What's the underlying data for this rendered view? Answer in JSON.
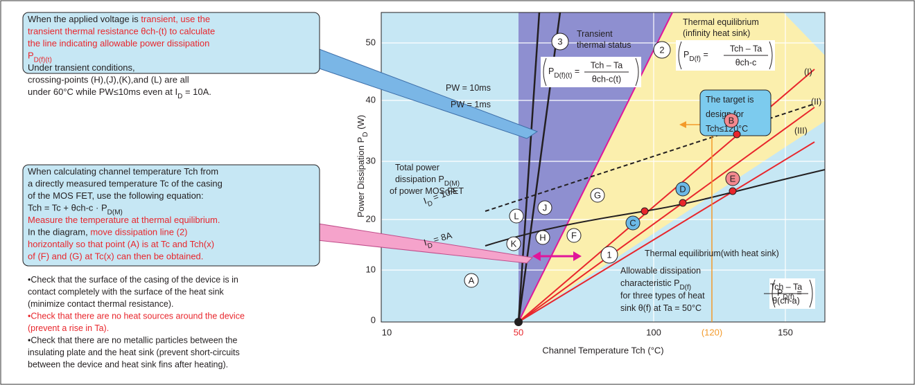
{
  "note_boxes": [
    {
      "lines": [
        [
          {
            "text": "When the applied voltage is "
          },
          {
            "text": "transient, use the",
            "color": "#e8262c"
          }
        ],
        [
          {
            "text": "transient thermal resistance θch-(t) to calculate",
            "color": "#e8262c"
          }
        ],
        [
          {
            "text": "the line indicating allowable power dissipation",
            "color": "#e8262c"
          }
        ],
        [
          {
            "text": "P",
            "color": "#e8262c"
          },
          {
            "text": "D(f)(t)",
            "color": "#e8262c",
            "sub": true
          }
        ],
        [
          {
            "text": "Under transient conditions,"
          }
        ],
        [
          {
            "text": "crossing-points (H),(J),(K),and (L) are all"
          }
        ],
        [
          {
            "text": "under 60°C while PW≤10ms even at I"
          },
          {
            "text": "D",
            "sub": true
          },
          {
            "text": " = 10A."
          }
        ]
      ]
    },
    {
      "lines": [
        [
          {
            "text": "When calculating channel temperature Tch from"
          }
        ],
        [
          {
            "text": "a directly measured temperature Tc of the casing"
          }
        ],
        [
          {
            "text": "of the MOS FET, use the following equation:"
          }
        ],
        [
          {
            "text": "  Tch = Tc + θch-c · P"
          },
          {
            "text": "D(M)",
            "sub": true
          }
        ],
        [
          {
            "text": "Measure the temperature at thermal equilibrium.",
            "color": "#e8262c"
          }
        ],
        [
          {
            "text": "In the diagram, "
          },
          {
            "text": "move dissipation line (2)",
            "color": "#e8262c"
          }
        ],
        [
          {
            "text": "horizontally so that point (A) is at Tc and Tch(x)",
            "color": "#e8262c"
          }
        ],
        [
          {
            "text": "of (F) and (G) at Tc(x) can then be obtained.",
            "color": "#e8262c"
          }
        ]
      ]
    }
  ],
  "checklist": [
    [
      {
        "text": "•Check that the surface of the casing of the device is in"
      }
    ],
    [
      {
        "text": "contact completely with the surface of the heat sink"
      }
    ],
    [
      {
        "text": "(minimize contact thermal resistance)."
      }
    ],
    [
      {
        "text": "•Check that there are no heat sources around the device",
        "color": "#e8262c"
      }
    ],
    [
      {
        "text": "(prevent a rise in Ta).",
        "color": "#e8262c"
      }
    ],
    [
      {
        "text": "•Check that there are no metallic particles between the"
      }
    ],
    [
      {
        "text": "insulating plate and the heat sink (prevent short-circuits"
      }
    ],
    [
      {
        "text": "between the device and heat sink fins after heating)."
      }
    ]
  ],
  "axes": {
    "x_title": "Channel Temperature   Tch   (°C)",
    "y_title": [
      {
        "text": "Power Dissipation   P"
      },
      {
        "text": "D",
        "sub": true
      },
      {
        "text": "   (W)"
      }
    ],
    "x_ticks": [
      "10",
      "50",
      "100",
      "(120)",
      "150"
    ],
    "y_ticks": [
      "0",
      "10",
      "20",
      "30",
      "40",
      "50"
    ]
  },
  "labels": [
    [
      {
        "text": "Transient"
      }
    ],
    [
      {
        "text": "thermal status"
      }
    ],
    [
      {
        "text": "Thermal equilibrium"
      }
    ],
    [
      {
        "text": "(infinity heat sink)"
      }
    ],
    [
      {
        "text": "PW = 10ms"
      }
    ],
    [
      {
        "text": "PW = 1ms"
      }
    ],
    [
      {
        "text": "The target is"
      }
    ],
    [
      {
        "text": "design for"
      }
    ],
    [
      {
        "text": "Tch≤120°C"
      }
    ],
    [
      {
        "text": "(I)"
      }
    ],
    [
      {
        "text": "(II)"
      }
    ],
    [
      {
        "text": "(III)"
      }
    ],
    [
      {
        "text": "Total power"
      }
    ],
    [
      {
        "text": "dissipation P"
      },
      {
        "text": "D(M)",
        "sub": true
      }
    ],
    [
      {
        "text": " of power MOS FET"
      }
    ],
    [
      {
        "text": "Thermal equilibrium(with heat sink)"
      }
    ],
    [
      {
        "text": "Allowable dissipation"
      }
    ],
    [
      {
        "text": "characteristic P"
      },
      {
        "text": "D(f)",
        "sub": true
      }
    ],
    [
      {
        "text": "for three types of heat"
      }
    ],
    [
      {
        "text": "sink θ(f) at Ta = 50°C"
      }
    ],
    [
      {
        "text": "I"
      },
      {
        "text": "D",
        "sub": true
      },
      {
        "text": " = 10A"
      }
    ],
    [
      {
        "text": "I"
      },
      {
        "text": "D",
        "sub": true
      },
      {
        "text": " = 8A"
      }
    ]
  ],
  "circled": [
    "1",
    "2",
    "3",
    "A",
    "B",
    "C",
    "D",
    "E",
    "F",
    "G",
    "H",
    "J",
    "K",
    "L"
  ],
  "formulas": [
    {
      "lhs": "P",
      "sub": "D(f)(t)",
      "eq": " =",
      "num": "Tch – Ta",
      "den": "θch-c(t)"
    },
    {
      "lhs": "P",
      "sub": "D(f)",
      "eq": " =",
      "num": "Tch – Ta",
      "den": "θch-c"
    },
    {
      "lhs": "P",
      "sub": "D(f)",
      "eq": " =",
      "num": "Tch – Ta",
      "den": "θ(ch-a)"
    }
  ]
}
